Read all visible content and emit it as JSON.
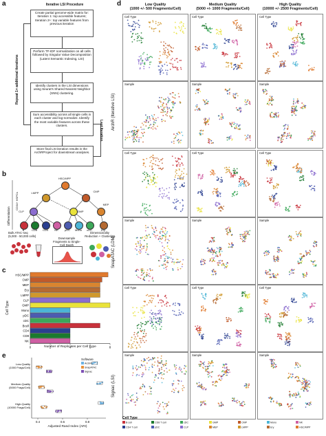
{
  "panel_labels": {
    "a": "a",
    "b": "b",
    "c": "c",
    "d": "d",
    "e": "e"
  },
  "flow": {
    "title": "Iterative LSI Procedure",
    "box1": "Create partial genome-wide matrix for: Iteration 1: top accessible features; Iteration 2+: top variable features from previous iteration",
    "box2": "Perform TF-IDF normalization on all cells followed by Singular Value Decomposition (Latent Semantic Indexing, LSI)",
    "box3": "Identify clusters in the LSI dimensions using Seurat's Shared Nearest Neighbor (SNN) clustering.",
    "box4": "Sum accessibility across all single cells in each cluster and log-normalize. Identify the most variable features across these clusters.",
    "box5": "Store final LSI iteration results in the ArchRProject for downstream analyses.",
    "repeat": "Repeat 1+ additional iterations",
    "last": "Last Iteration"
  },
  "hier": {
    "differentiation": "Differentiation",
    "cd34": "CD34+ HSPCs",
    "nodes": [
      "HSC/MPP",
      "LMPP",
      "CMP",
      "MEP",
      "GMP",
      "CLP",
      "B",
      "CD8",
      "CD4",
      "NK",
      "pDC",
      "Mono",
      "cDC",
      "Ery"
    ],
    "bulk": "Bulk ATAC-seq\n(5,000 - 50,000 cells)",
    "downsample": "Downsample Fragments to Single-Cell Depth",
    "dimred": "Dimensionality Reduction + Clustering"
  },
  "panel_c": {
    "xlabel": "Number of Replicates per Cell Type",
    "ylabel": "Cell Type",
    "categories": [
      "HSC/MPP",
      "CMP",
      "MEP",
      "Ery",
      "LMPP",
      "CLP",
      "GMP",
      "Mono",
      "pDC",
      "cDC",
      "Bcell",
      "CD4",
      "CD8",
      "NK"
    ],
    "ticks": [
      "0",
      "2",
      "4",
      "6",
      "8"
    ]
  },
  "chart_data": [
    {
      "type": "bar",
      "orientation": "horizontal",
      "ylabel": "Cell Type",
      "xlabel": "Number of Replicates per Cell Type",
      "categories": [
        "HSC/MPP",
        "CMP",
        "MEP",
        "Ery",
        "LMPP",
        "CLP",
        "GMP",
        "Mono",
        "pDC",
        "cDC",
        "Bcell",
        "CD4",
        "CD8",
        "NK"
      ],
      "values": [
        7.8,
        7.2,
        7.0,
        7.0,
        7.0,
        6.0,
        8.0,
        4.0,
        4.0,
        4.0,
        7.0,
        4.0,
        4.0,
        4.0
      ],
      "colors": [
        "#e07a2e",
        "#c05a2a",
        "#d9852f",
        "#b56a32",
        "#d0982b",
        "#8b6ccf",
        "#e9e23a",
        "#4cb5d6",
        "#4c5bb0",
        "#3da85a",
        "#c8323b",
        "#2a3f8f",
        "#1b7a2e",
        "#cf5fa3"
      ],
      "xlim": [
        0,
        8
      ]
    },
    {
      "type": "scatter",
      "xlabel": "Adjusted Rand Index (ARI)",
      "categories": [
        "Low-Quality\n(1000 Frags/Cell)",
        "Medium-Quality\n(5000 Frags/Cell)",
        "High-Quality\n(10000 Frags/Cell)"
      ],
      "xlim": [
        0.35,
        0.95
      ],
      "ticks": [
        "0.4",
        "0.6",
        "0.8"
      ],
      "series": [
        {
          "name": "ArchR",
          "color": "#6cb2e2",
          "values": [
            0.86,
            0.9,
            0.91
          ]
        },
        {
          "name": "SnapATAC",
          "color": "#e8913a",
          "values": [
            0.41,
            0.43,
            0.45
          ]
        },
        {
          "name": "Signac",
          "color": "#7d4fb5",
          "values": [
            0.49,
            0.5,
            0.57
          ]
        }
      ],
      "legend_title": "Software"
    }
  ],
  "panel_d": {
    "col_headers": [
      "Low Quality\n(1000 +/- 500 Fragments/Cell)",
      "Medium Quality\n(5000 +/- 1000 Fragments/Cell)",
      "High Quality\n(10000 +/- 2500 Fragments/Cell)"
    ],
    "row_labels": [
      "ArchR (Iterative LSI)",
      "SnapATAC (LDM)",
      "Signac (LSI)"
    ],
    "panel_titles": [
      "Cell Type",
      "Sample"
    ]
  },
  "legend": {
    "title": "Cell Type",
    "items": [
      {
        "label": "B cell",
        "color": "#c8323b"
      },
      {
        "label": "CD4 T cell",
        "color": "#2a3f8f"
      },
      {
        "label": "CD8 T cell",
        "color": "#1b7a2e"
      },
      {
        "label": "pDC",
        "color": "#4c5bb0"
      },
      {
        "label": "cDC",
        "color": "#3da85a"
      },
      {
        "label": "CLP",
        "color": "#8b6ccf"
      },
      {
        "label": "GMP",
        "color": "#e9e23a"
      },
      {
        "label": "MEP",
        "color": "#d9852f"
      },
      {
        "label": "CMP",
        "color": "#c05a2a"
      },
      {
        "label": "LMPP",
        "color": "#d0982b"
      },
      {
        "label": "Mono",
        "color": "#4cb5d6"
      },
      {
        "label": "Ery",
        "color": "#b56a32"
      },
      {
        "label": "NK",
        "color": "#cf5fa3"
      },
      {
        "label": "HSC/MPP",
        "color": "#e07a2e"
      }
    ]
  }
}
